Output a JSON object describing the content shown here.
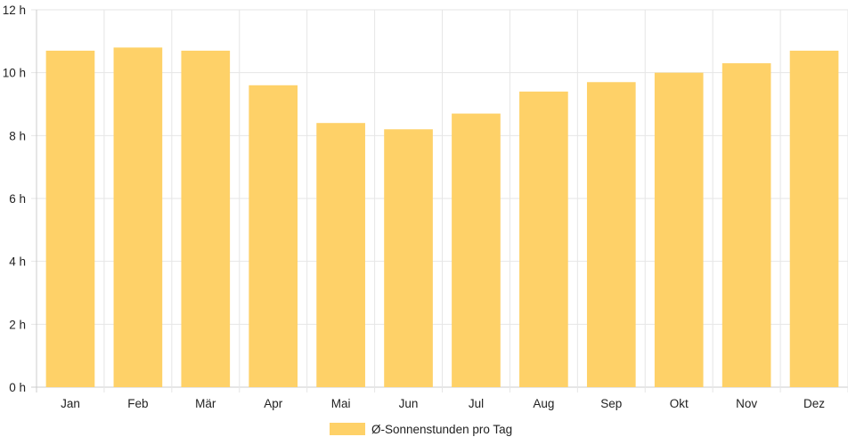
{
  "chart_data": {
    "type": "bar",
    "categories": [
      "Jan",
      "Feb",
      "Mär",
      "Apr",
      "Mai",
      "Jun",
      "Jul",
      "Aug",
      "Sep",
      "Okt",
      "Nov",
      "Dez"
    ],
    "series": [
      {
        "name": "Ø-Sonnenstunden pro Tag",
        "values": [
          10.7,
          10.8,
          10.7,
          9.6,
          8.4,
          8.2,
          8.7,
          9.4,
          9.7,
          10.0,
          10.3,
          10.7
        ]
      }
    ],
    "ylim": [
      0,
      12
    ],
    "yticks": [
      0,
      2,
      4,
      6,
      8,
      10,
      12
    ],
    "ytick_unit": "h",
    "grid": true,
    "legend": "bottom-center",
    "colors": {
      "bar": "#fed168",
      "grid": "#e6e6e6",
      "axis": "#cccccc"
    }
  }
}
